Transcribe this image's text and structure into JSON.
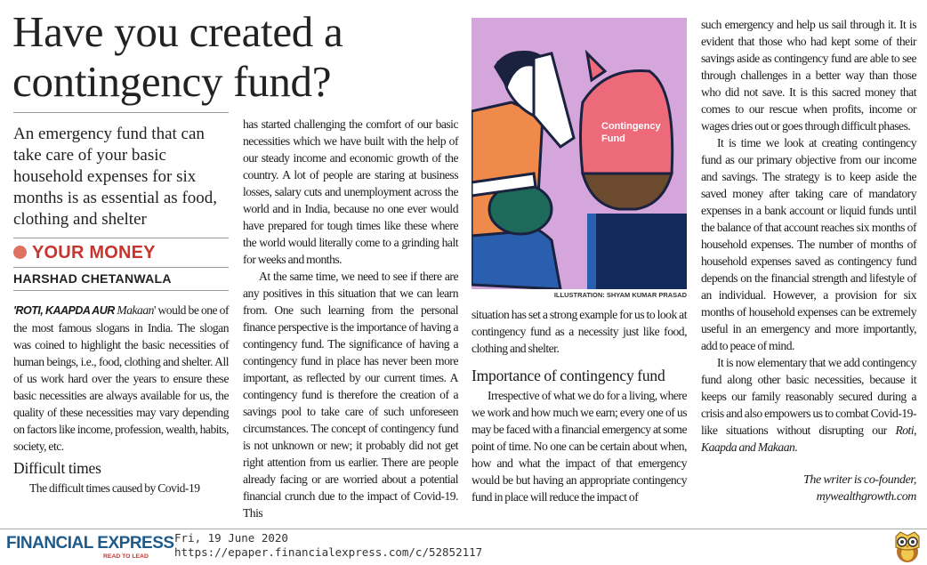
{
  "article": {
    "headline": "Have you created a contingency fund?",
    "standfirst": "An emergency fund that can take care of your basic household expenses for six months is as essential as food, clothing and shelter",
    "section": "YOUR MONEY",
    "byline": "HARSHAD CHETANWALA",
    "columns": {
      "c1": {
        "lead_caps": "'ROTI, KAAPDA AUR ",
        "lead_italic": "Makaan",
        "p1_rest": "' would be one of the most famous slogans in India. The slogan was coined to highlight the basic necessities of human beings, i.e., food, clothing and shelter. All of us work hard over the years to ensure these basic necessities are always available for us, the quality of these necessities may vary depending on factors like income, profession, wealth, habits, society, etc.",
        "subhead": "Difficult times",
        "p2": "The difficult times caused by Covid-19"
      },
      "c2": {
        "p1": "has started challenging the comfort of our basic necessities which we have built with the help of our steady income and economic growth of the country. A lot of people are staring at business losses, salary cuts and unemployment across the world and in India, because no one ever would have prepared for tough times like these where the world would literally come to a grinding halt for weeks and months.",
        "p2": "At the same time, we need to see if there are any positives in this situation that we can learn from. One such learning from the personal finance perspective is the importance of having a contingency fund. The significance of having a contingency fund in place has never been more important, as reflected by our current times. A contingency fund is therefore the creation of a savings pool to take care of such unforeseen circumstances. The concept of contingency fund is not unknown or new; it probably did not get right attention from us earlier. There are people already facing or are worried about a potential financial crunch due to the impact of Covid-19. This"
      },
      "c3": {
        "p1": "situation has set a strong example for us to look at contingency fund as a necessity just like food, clothing and shelter.",
        "subhead": "Importance of contingency fund",
        "p2": "Irrespective of what we do for a living, where we work and how much we earn; every one of us may be faced with a financial emergency at some point of time. No one can be certain about when, how and what the impact of that emergency would be but having an appropriate contingency fund in place will reduce the impact of"
      },
      "c4": {
        "p1": "such emergency and help us sail through it. It is evident that those who had kept some of their savings aside as contingency fund are able to see through challenges in a better way than those who did not save. It is this sacred money that comes to our rescue when profits, income or wages dries out or goes through difficult phases.",
        "p2": "It is time we look at creating contingency fund as our primary objective from our income and savings. The strategy is to keep aside the saved money after taking care of mandatory expenses in a bank account or liquid funds until the balance of that account reaches six months of household expenses. The number of months of household expenses saved as contingency fund depends on the financial strength and lifestyle of an individual. However, a provision for six months of household expenses can be extremely useful in an emergency and more importantly, add to peace of mind.",
        "p3": "It is now elementary that we add contingency fund along other basic necessities, because it keeps our family reasonably secured during a crisis and also empowers us to combat Covid-19-like situations without disrupting our ",
        "p3_italic": "Roti, Kaapda and Makaan",
        "p3_end": "."
      }
    },
    "signature_line1": "The writer is co-founder,",
    "signature_line2": "mywealthgrowth.com",
    "illustration": {
      "label_line1": "Contingency",
      "label_line2": "Fund",
      "credit": "ILLUSTRATION: SHYAM KUMAR PRASAD"
    }
  },
  "footer": {
    "logo": "FINANCIAL EXPRESS",
    "tagline": "READ TO LEAD",
    "date": "Fri, 19 June 2020",
    "url": "https://epaper.financialexpress.com/c/52852117",
    "icon": "owl-icon"
  },
  "colors": {
    "accent": "#c8342e",
    "brand": "#1f5b8a",
    "illustration_bg": "#d4a6dc"
  }
}
